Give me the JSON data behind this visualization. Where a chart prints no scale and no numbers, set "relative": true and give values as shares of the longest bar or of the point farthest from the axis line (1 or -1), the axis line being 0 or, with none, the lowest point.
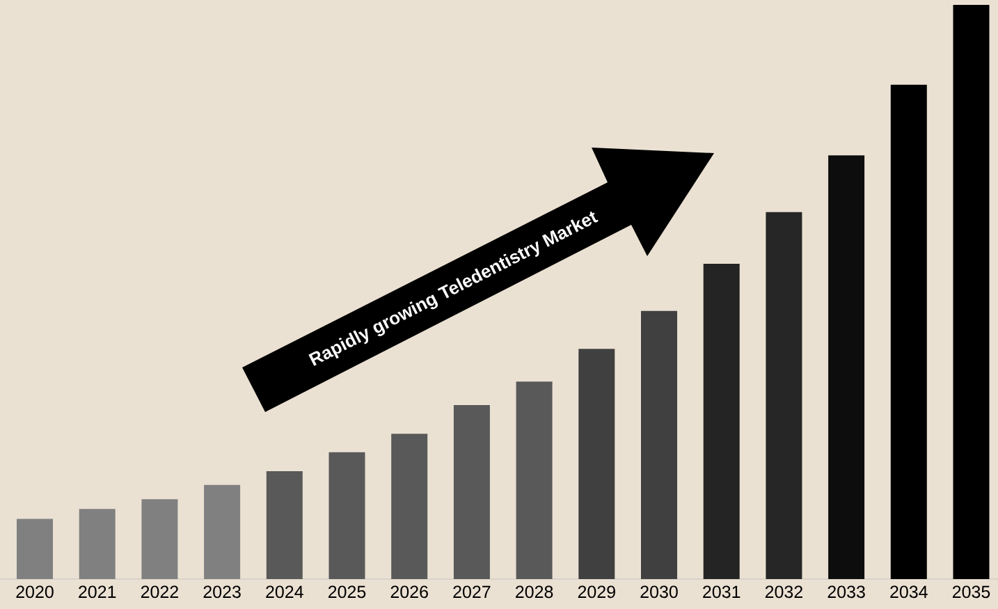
{
  "chart_data": {
    "type": "bar",
    "relative": true,
    "categories": [
      "2020",
      "2021",
      "2022",
      "2023",
      "2024",
      "2025",
      "2026",
      "2027",
      "2028",
      "2029",
      "2030",
      "2031",
      "2032",
      "2033",
      "2034",
      "2035"
    ],
    "values": [
      0.105,
      0.122,
      0.139,
      0.164,
      0.188,
      0.221,
      0.253,
      0.303,
      0.344,
      0.401,
      0.467,
      0.549,
      0.639,
      0.738,
      0.861,
      1
    ],
    "colors": [
      "#808080",
      "#808080",
      "#808080",
      "#808080",
      "#595959",
      "#595959",
      "#595959",
      "#595959",
      "#595959",
      "#404040",
      "#404040",
      "#242424",
      "#262626",
      "#0d0d0d",
      "#000000",
      "#000000"
    ],
    "annotations": [
      "Rapidly growing Teledentistry Market"
    ]
  }
}
